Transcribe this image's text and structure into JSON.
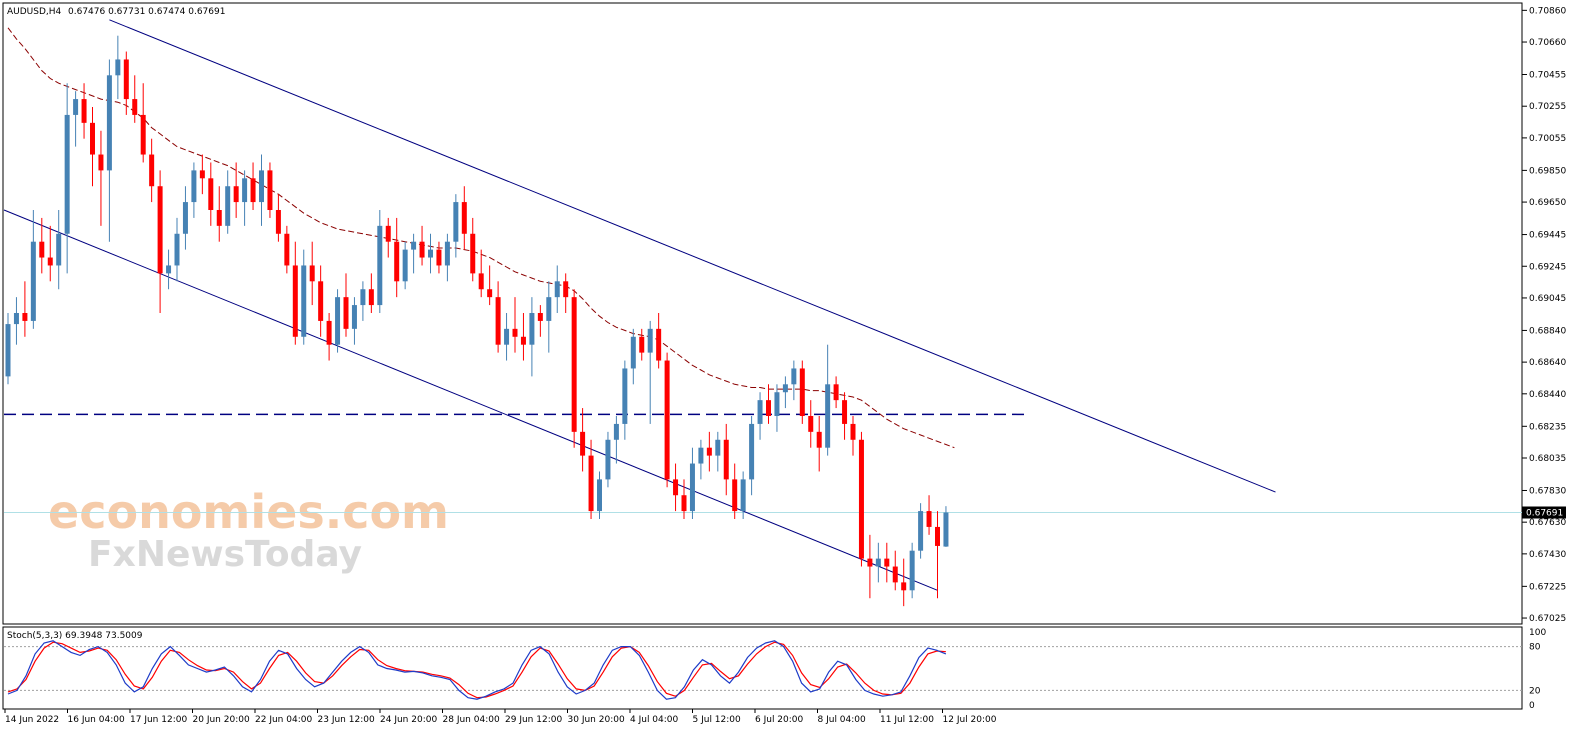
{
  "header": {
    "symbol": "AUDUSD,H4",
    "ohlc": "0.67476 0.67731 0.67474 0.67691"
  },
  "watermark": {
    "line1": "economies.com",
    "line2": "FxNewsToday",
    "color": "#f5c6a0"
  },
  "price_axis": {
    "ticks": [
      "0.70860",
      "0.70660",
      "0.70455",
      "0.70255",
      "0.70055",
      "0.69850",
      "0.69650",
      "0.69445",
      "0.69245",
      "0.69045",
      "0.68840",
      "0.68640",
      "0.68440",
      "0.68235",
      "0.68035",
      "0.67830",
      "0.67630",
      "0.67430",
      "0.67225",
      "0.67025"
    ],
    "current_price": "0.67691"
  },
  "time_axis": {
    "labels": [
      "14 Jun 2022",
      "16 Jun 04:00",
      "17 Jun 12:00",
      "20 Jun 20:00",
      "22 Jun 04:00",
      "23 Jun 12:00",
      "24 Jun 20:00",
      "28 Jun 04:00",
      "29 Jun 12:00",
      "30 Jun 20:00",
      "4 Jul 04:00",
      "5 Jul 12:00",
      "6 Jul 20:00",
      "8 Jul 04:00",
      "11 Jul 12:00",
      "12 Jul 20:00"
    ]
  },
  "stoch": {
    "label": "Stoch(5,3,3) 69.3948 73.5009",
    "levels": [
      "100",
      "80",
      "20",
      "0"
    ]
  },
  "colors": {
    "bull": "#4682b4",
    "bear": "#ff0000",
    "channel": "#000080",
    "ma": "#8b0000",
    "stoch_main": "#1e3cc8",
    "stoch_signal": "#ff0000",
    "support": "#000080"
  },
  "chart_data": {
    "type": "candlestick",
    "symbol": "AUDUSD",
    "timeframe": "H4",
    "ylim": [
      0.67,
      0.709
    ],
    "candles": [
      {
        "o": 0.6855,
        "h": 0.6895,
        "l": 0.685,
        "c": 0.6888
      },
      {
        "o": 0.6888,
        "h": 0.6905,
        "l": 0.6875,
        "c": 0.6895
      },
      {
        "o": 0.6895,
        "h": 0.6915,
        "l": 0.688,
        "c": 0.689
      },
      {
        "o": 0.689,
        "h": 0.696,
        "l": 0.6885,
        "c": 0.694
      },
      {
        "o": 0.694,
        "h": 0.6955,
        "l": 0.692,
        "c": 0.693
      },
      {
        "o": 0.693,
        "h": 0.695,
        "l": 0.6915,
        "c": 0.6925
      },
      {
        "o": 0.6925,
        "h": 0.696,
        "l": 0.691,
        "c": 0.6945
      },
      {
        "o": 0.6945,
        "h": 0.704,
        "l": 0.692,
        "c": 0.702
      },
      {
        "o": 0.702,
        "h": 0.7035,
        "l": 0.7,
        "c": 0.703
      },
      {
        "o": 0.703,
        "h": 0.704,
        "l": 0.7005,
        "c": 0.7015
      },
      {
        "o": 0.7015,
        "h": 0.7025,
        "l": 0.6975,
        "c": 0.6995
      },
      {
        "o": 0.6995,
        "h": 0.701,
        "l": 0.695,
        "c": 0.6985
      },
      {
        "o": 0.6985,
        "h": 0.7055,
        "l": 0.694,
        "c": 0.7045
      },
      {
        "o": 0.7045,
        "h": 0.707,
        "l": 0.703,
        "c": 0.7055
      },
      {
        "o": 0.7055,
        "h": 0.706,
        "l": 0.702,
        "c": 0.703
      },
      {
        "o": 0.703,
        "h": 0.7045,
        "l": 0.7015,
        "c": 0.702
      },
      {
        "o": 0.702,
        "h": 0.704,
        "l": 0.699,
        "c": 0.6995
      },
      {
        "o": 0.6995,
        "h": 0.7005,
        "l": 0.6965,
        "c": 0.6975
      },
      {
        "o": 0.6975,
        "h": 0.6985,
        "l": 0.6895,
        "c": 0.692
      },
      {
        "o": 0.692,
        "h": 0.6935,
        "l": 0.691,
        "c": 0.6925
      },
      {
        "o": 0.6925,
        "h": 0.6955,
        "l": 0.6915,
        "c": 0.6945
      },
      {
        "o": 0.6945,
        "h": 0.6975,
        "l": 0.6935,
        "c": 0.6965
      },
      {
        "o": 0.6965,
        "h": 0.699,
        "l": 0.6955,
        "c": 0.6985
      },
      {
        "o": 0.6985,
        "h": 0.6995,
        "l": 0.697,
        "c": 0.698
      },
      {
        "o": 0.698,
        "h": 0.699,
        "l": 0.695,
        "c": 0.696
      },
      {
        "o": 0.696,
        "h": 0.6975,
        "l": 0.694,
        "c": 0.695
      },
      {
        "o": 0.695,
        "h": 0.6985,
        "l": 0.6945,
        "c": 0.6975
      },
      {
        "o": 0.6975,
        "h": 0.699,
        "l": 0.6955,
        "c": 0.6965
      },
      {
        "o": 0.6965,
        "h": 0.6985,
        "l": 0.695,
        "c": 0.698
      },
      {
        "o": 0.698,
        "h": 0.699,
        "l": 0.696,
        "c": 0.6965
      },
      {
        "o": 0.6965,
        "h": 0.6995,
        "l": 0.695,
        "c": 0.6985
      },
      {
        "o": 0.6985,
        "h": 0.699,
        "l": 0.6955,
        "c": 0.696
      },
      {
        "o": 0.696,
        "h": 0.697,
        "l": 0.694,
        "c": 0.6945
      },
      {
        "o": 0.6945,
        "h": 0.695,
        "l": 0.692,
        "c": 0.6925
      },
      {
        "o": 0.6925,
        "h": 0.694,
        "l": 0.6875,
        "c": 0.688
      },
      {
        "o": 0.688,
        "h": 0.6935,
        "l": 0.6875,
        "c": 0.6925
      },
      {
        "o": 0.6925,
        "h": 0.694,
        "l": 0.69,
        "c": 0.6915
      },
      {
        "o": 0.6915,
        "h": 0.6925,
        "l": 0.688,
        "c": 0.689
      },
      {
        "o": 0.689,
        "h": 0.6895,
        "l": 0.6865,
        "c": 0.6875
      },
      {
        "o": 0.6875,
        "h": 0.691,
        "l": 0.687,
        "c": 0.6905
      },
      {
        "o": 0.6905,
        "h": 0.692,
        "l": 0.688,
        "c": 0.6885
      },
      {
        "o": 0.6885,
        "h": 0.6905,
        "l": 0.6875,
        "c": 0.69
      },
      {
        "o": 0.69,
        "h": 0.6915,
        "l": 0.689,
        "c": 0.691
      },
      {
        "o": 0.691,
        "h": 0.692,
        "l": 0.6895,
        "c": 0.69
      },
      {
        "o": 0.69,
        "h": 0.696,
        "l": 0.6895,
        "c": 0.695
      },
      {
        "o": 0.695,
        "h": 0.6955,
        "l": 0.693,
        "c": 0.694
      },
      {
        "o": 0.694,
        "h": 0.6955,
        "l": 0.6905,
        "c": 0.6915
      },
      {
        "o": 0.6915,
        "h": 0.694,
        "l": 0.691,
        "c": 0.6935
      },
      {
        "o": 0.6935,
        "h": 0.6945,
        "l": 0.692,
        "c": 0.694
      },
      {
        "o": 0.694,
        "h": 0.695,
        "l": 0.6925,
        "c": 0.693
      },
      {
        "o": 0.693,
        "h": 0.6945,
        "l": 0.692,
        "c": 0.6935
      },
      {
        "o": 0.6935,
        "h": 0.694,
        "l": 0.692,
        "c": 0.6925
      },
      {
        "o": 0.6925,
        "h": 0.6945,
        "l": 0.6915,
        "c": 0.694
      },
      {
        "o": 0.694,
        "h": 0.697,
        "l": 0.693,
        "c": 0.6965
      },
      {
        "o": 0.6965,
        "h": 0.6975,
        "l": 0.6935,
        "c": 0.6945
      },
      {
        "o": 0.6945,
        "h": 0.6955,
        "l": 0.6915,
        "c": 0.692
      },
      {
        "o": 0.692,
        "h": 0.6935,
        "l": 0.6905,
        "c": 0.691
      },
      {
        "o": 0.691,
        "h": 0.6925,
        "l": 0.69,
        "c": 0.6905
      },
      {
        "o": 0.6905,
        "h": 0.6915,
        "l": 0.687,
        "c": 0.6875
      },
      {
        "o": 0.6875,
        "h": 0.6895,
        "l": 0.6865,
        "c": 0.6885
      },
      {
        "o": 0.6885,
        "h": 0.6905,
        "l": 0.687,
        "c": 0.688
      },
      {
        "o": 0.688,
        "h": 0.6895,
        "l": 0.6865,
        "c": 0.6875
      },
      {
        "o": 0.6875,
        "h": 0.6905,
        "l": 0.6855,
        "c": 0.6895
      },
      {
        "o": 0.6895,
        "h": 0.69,
        "l": 0.688,
        "c": 0.689
      },
      {
        "o": 0.689,
        "h": 0.6915,
        "l": 0.687,
        "c": 0.6905
      },
      {
        "o": 0.6905,
        "h": 0.6925,
        "l": 0.6895,
        "c": 0.6915
      },
      {
        "o": 0.6915,
        "h": 0.692,
        "l": 0.6895,
        "c": 0.6905
      },
      {
        "o": 0.6905,
        "h": 0.691,
        "l": 0.681,
        "c": 0.682
      },
      {
        "o": 0.682,
        "h": 0.6835,
        "l": 0.6795,
        "c": 0.6805
      },
      {
        "o": 0.6805,
        "h": 0.6815,
        "l": 0.6765,
        "c": 0.677
      },
      {
        "o": 0.677,
        "h": 0.6795,
        "l": 0.6765,
        "c": 0.679
      },
      {
        "o": 0.679,
        "h": 0.682,
        "l": 0.6785,
        "c": 0.6815
      },
      {
        "o": 0.6815,
        "h": 0.683,
        "l": 0.68,
        "c": 0.6825
      },
      {
        "o": 0.6825,
        "h": 0.6865,
        "l": 0.6815,
        "c": 0.686
      },
      {
        "o": 0.686,
        "h": 0.6885,
        "l": 0.685,
        "c": 0.688
      },
      {
        "o": 0.688,
        "h": 0.6885,
        "l": 0.6865,
        "c": 0.687
      },
      {
        "o": 0.687,
        "h": 0.689,
        "l": 0.6825,
        "c": 0.6885
      },
      {
        "o": 0.6885,
        "h": 0.6895,
        "l": 0.686,
        "c": 0.6865
      },
      {
        "o": 0.6865,
        "h": 0.687,
        "l": 0.6785,
        "c": 0.679
      },
      {
        "o": 0.679,
        "h": 0.68,
        "l": 0.677,
        "c": 0.678
      },
      {
        "o": 0.678,
        "h": 0.679,
        "l": 0.6765,
        "c": 0.677
      },
      {
        "o": 0.677,
        "h": 0.681,
        "l": 0.6765,
        "c": 0.68
      },
      {
        "o": 0.68,
        "h": 0.6815,
        "l": 0.679,
        "c": 0.681
      },
      {
        "o": 0.681,
        "h": 0.682,
        "l": 0.6795,
        "c": 0.6805
      },
      {
        "o": 0.6805,
        "h": 0.682,
        "l": 0.6795,
        "c": 0.6815
      },
      {
        "o": 0.6815,
        "h": 0.6825,
        "l": 0.678,
        "c": 0.679
      },
      {
        "o": 0.679,
        "h": 0.68,
        "l": 0.6765,
        "c": 0.677
      },
      {
        "o": 0.677,
        "h": 0.6795,
        "l": 0.6765,
        "c": 0.679
      },
      {
        "o": 0.679,
        "h": 0.683,
        "l": 0.678,
        "c": 0.6825
      },
      {
        "o": 0.6825,
        "h": 0.6845,
        "l": 0.6815,
        "c": 0.684
      },
      {
        "o": 0.684,
        "h": 0.685,
        "l": 0.6825,
        "c": 0.683
      },
      {
        "o": 0.683,
        "h": 0.685,
        "l": 0.682,
        "c": 0.6845
      },
      {
        "o": 0.6845,
        "h": 0.6855,
        "l": 0.6835,
        "c": 0.685
      },
      {
        "o": 0.685,
        "h": 0.6865,
        "l": 0.684,
        "c": 0.686
      },
      {
        "o": 0.686,
        "h": 0.6865,
        "l": 0.6825,
        "c": 0.683
      },
      {
        "o": 0.683,
        "h": 0.684,
        "l": 0.681,
        "c": 0.682
      },
      {
        "o": 0.682,
        "h": 0.683,
        "l": 0.6795,
        "c": 0.681
      },
      {
        "o": 0.681,
        "h": 0.6875,
        "l": 0.6805,
        "c": 0.685
      },
      {
        "o": 0.685,
        "h": 0.6855,
        "l": 0.6835,
        "c": 0.684
      },
      {
        "o": 0.684,
        "h": 0.6845,
        "l": 0.6815,
        "c": 0.6825
      },
      {
        "o": 0.6825,
        "h": 0.683,
        "l": 0.6805,
        "c": 0.6815
      },
      {
        "o": 0.6815,
        "h": 0.682,
        "l": 0.6735,
        "c": 0.674
      },
      {
        "o": 0.674,
        "h": 0.6755,
        "l": 0.6715,
        "c": 0.6735
      },
      {
        "o": 0.6735,
        "h": 0.675,
        "l": 0.6725,
        "c": 0.674
      },
      {
        "o": 0.674,
        "h": 0.675,
        "l": 0.6725,
        "c": 0.6735
      },
      {
        "o": 0.6735,
        "h": 0.6745,
        "l": 0.672,
        "c": 0.6725
      },
      {
        "o": 0.6725,
        "h": 0.674,
        "l": 0.671,
        "c": 0.672
      },
      {
        "o": 0.672,
        "h": 0.675,
        "l": 0.6715,
        "c": 0.6745
      },
      {
        "o": 0.6745,
        "h": 0.6775,
        "l": 0.674,
        "c": 0.677
      },
      {
        "o": 0.677,
        "h": 0.678,
        "l": 0.6755,
        "c": 0.676
      },
      {
        "o": 0.676,
        "h": 0.677,
        "l": 0.6715,
        "c": 0.6748
      },
      {
        "o": 0.67476,
        "h": 0.67731,
        "l": 0.67474,
        "c": 0.67691
      }
    ],
    "moving_average": [
      0.7075,
      0.7068,
      0.7062,
      0.7055,
      0.7048,
      0.7043,
      0.704,
      0.7038,
      0.7036,
      0.7034,
      0.7032,
      0.703,
      0.7029,
      0.7028,
      0.7026,
      0.7022,
      0.7018,
      0.7012,
      0.7008,
      0.7004,
      0.7,
      0.6998,
      0.6996,
      0.6994,
      0.6992,
      0.699,
      0.6988,
      0.6985,
      0.6982,
      0.6979,
      0.6976,
      0.6973,
      0.697,
      0.6966,
      0.6962,
      0.6958,
      0.6955,
      0.6952,
      0.695,
      0.6948,
      0.6947,
      0.6946,
      0.6945,
      0.6944,
      0.6943,
      0.6942,
      0.6941,
      0.694,
      0.6939,
      0.6938,
      0.6937,
      0.6936,
      0.6936,
      0.6936,
      0.6935,
      0.6934,
      0.6932,
      0.693,
      0.6927,
      0.6924,
      0.6921,
      0.6919,
      0.6917,
      0.6915,
      0.6914,
      0.6913,
      0.6912,
      0.6909,
      0.6904,
      0.6898,
      0.6893,
      0.6889,
      0.6886,
      0.6884,
      0.6882,
      0.6881,
      0.688,
      0.6878,
      0.6874,
      0.687,
      0.6866,
      0.6862,
      0.6859,
      0.6856,
      0.6854,
      0.6852,
      0.685,
      0.6849,
      0.6848,
      0.6848,
      0.6847,
      0.6847,
      0.6847,
      0.6847,
      0.6847,
      0.6846,
      0.6846,
      0.6845,
      0.6844,
      0.6843,
      0.6842,
      0.684,
      0.6836,
      0.6832,
      0.6828,
      0.6825,
      0.6822,
      0.682,
      0.6818,
      0.6816,
      0.6814,
      0.6812,
      0.681
    ],
    "channel_upper": {
      "from": [
        12,
        0.708
      ],
      "to": [
        150,
        0.6782
      ]
    },
    "channel_lower": {
      "from": [
        0,
        0.696
      ],
      "to": [
        110,
        0.672
      ]
    },
    "support_level": 0.6831,
    "stochastic": {
      "ylim": [
        0,
        100
      ],
      "levels": [
        80,
        20
      ],
      "main": [
        15,
        20,
        40,
        70,
        85,
        88,
        80,
        72,
        68,
        76,
        80,
        72,
        55,
        30,
        18,
        25,
        50,
        70,
        80,
        68,
        55,
        50,
        45,
        48,
        52,
        40,
        25,
        18,
        35,
        60,
        75,
        70,
        50,
        35,
        25,
        30,
        45,
        60,
        72,
        80,
        72,
        55,
        50,
        48,
        45,
        46,
        44,
        40,
        38,
        35,
        20,
        10,
        8,
        12,
        18,
        22,
        30,
        55,
        75,
        80,
        70,
        45,
        25,
        15,
        20,
        30,
        55,
        75,
        80,
        80,
        68,
        45,
        20,
        8,
        10,
        25,
        48,
        62,
        55,
        40,
        30,
        45,
        65,
        78,
        85,
        88,
        80,
        60,
        30,
        18,
        22,
        45,
        60,
        55,
        35,
        20,
        15,
        12,
        14,
        18,
        40,
        65,
        78,
        75,
        70
      ],
      "signal": [
        18,
        22,
        35,
        60,
        78,
        86,
        84,
        78,
        72,
        74,
        78,
        75,
        62,
        42,
        26,
        22,
        38,
        60,
        75,
        72,
        62,
        54,
        48,
        47,
        50,
        45,
        32,
        22,
        30,
        50,
        68,
        72,
        60,
        44,
        32,
        30,
        40,
        54,
        66,
        76,
        75,
        62,
        54,
        50,
        47,
        46,
        45,
        42,
        40,
        37,
        28,
        16,
        10,
        11,
        15,
        20,
        26,
        45,
        66,
        78,
        74,
        56,
        36,
        22,
        20,
        26,
        45,
        66,
        78,
        80,
        72,
        54,
        32,
        16,
        12,
        20,
        38,
        55,
        57,
        46,
        36,
        40,
        56,
        70,
        80,
        86,
        83,
        68,
        44,
        28,
        24,
        36,
        52,
        56,
        44,
        30,
        20,
        15,
        14,
        16,
        30,
        52,
        70,
        74,
        73
      ]
    }
  }
}
